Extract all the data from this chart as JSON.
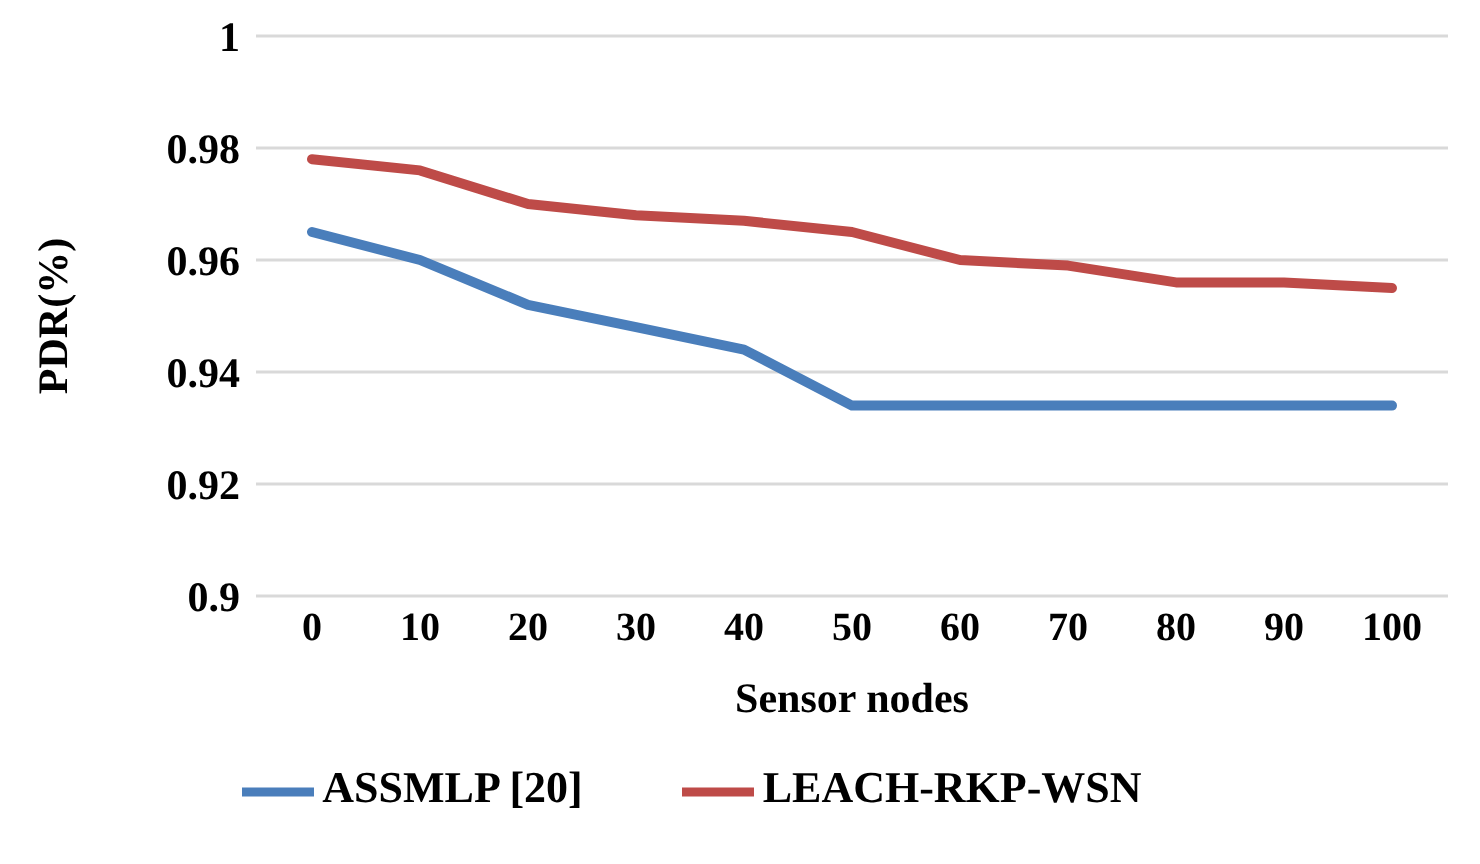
{
  "chart_data": {
    "type": "line",
    "xlabel": "Sensor nodes",
    "ylabel": "PDR(%)",
    "categories": [
      "0",
      "10",
      "20",
      "30",
      "40",
      "50",
      "60",
      "70",
      "80",
      "90",
      "100"
    ],
    "series": [
      {
        "name": "ASSMLP [20]",
        "color": "#4a7ebb",
        "values": [
          0.965,
          0.96,
          0.952,
          0.948,
          0.944,
          0.934,
          0.934,
          0.934,
          0.934,
          0.934,
          0.934
        ]
      },
      {
        "name": "LEACH-RKP-WSN",
        "color": "#be4b48",
        "values": [
          0.978,
          0.976,
          0.97,
          0.968,
          0.967,
          0.965,
          0.96,
          0.959,
          0.956,
          0.956,
          0.955
        ]
      }
    ],
    "ylim": [
      0.9,
      1
    ],
    "yticks": [
      0.9,
      0.92,
      0.94,
      0.96,
      0.98,
      1
    ],
    "grid": "y",
    "legend": "bottom",
    "marker": "none",
    "line_style": "solid"
  }
}
